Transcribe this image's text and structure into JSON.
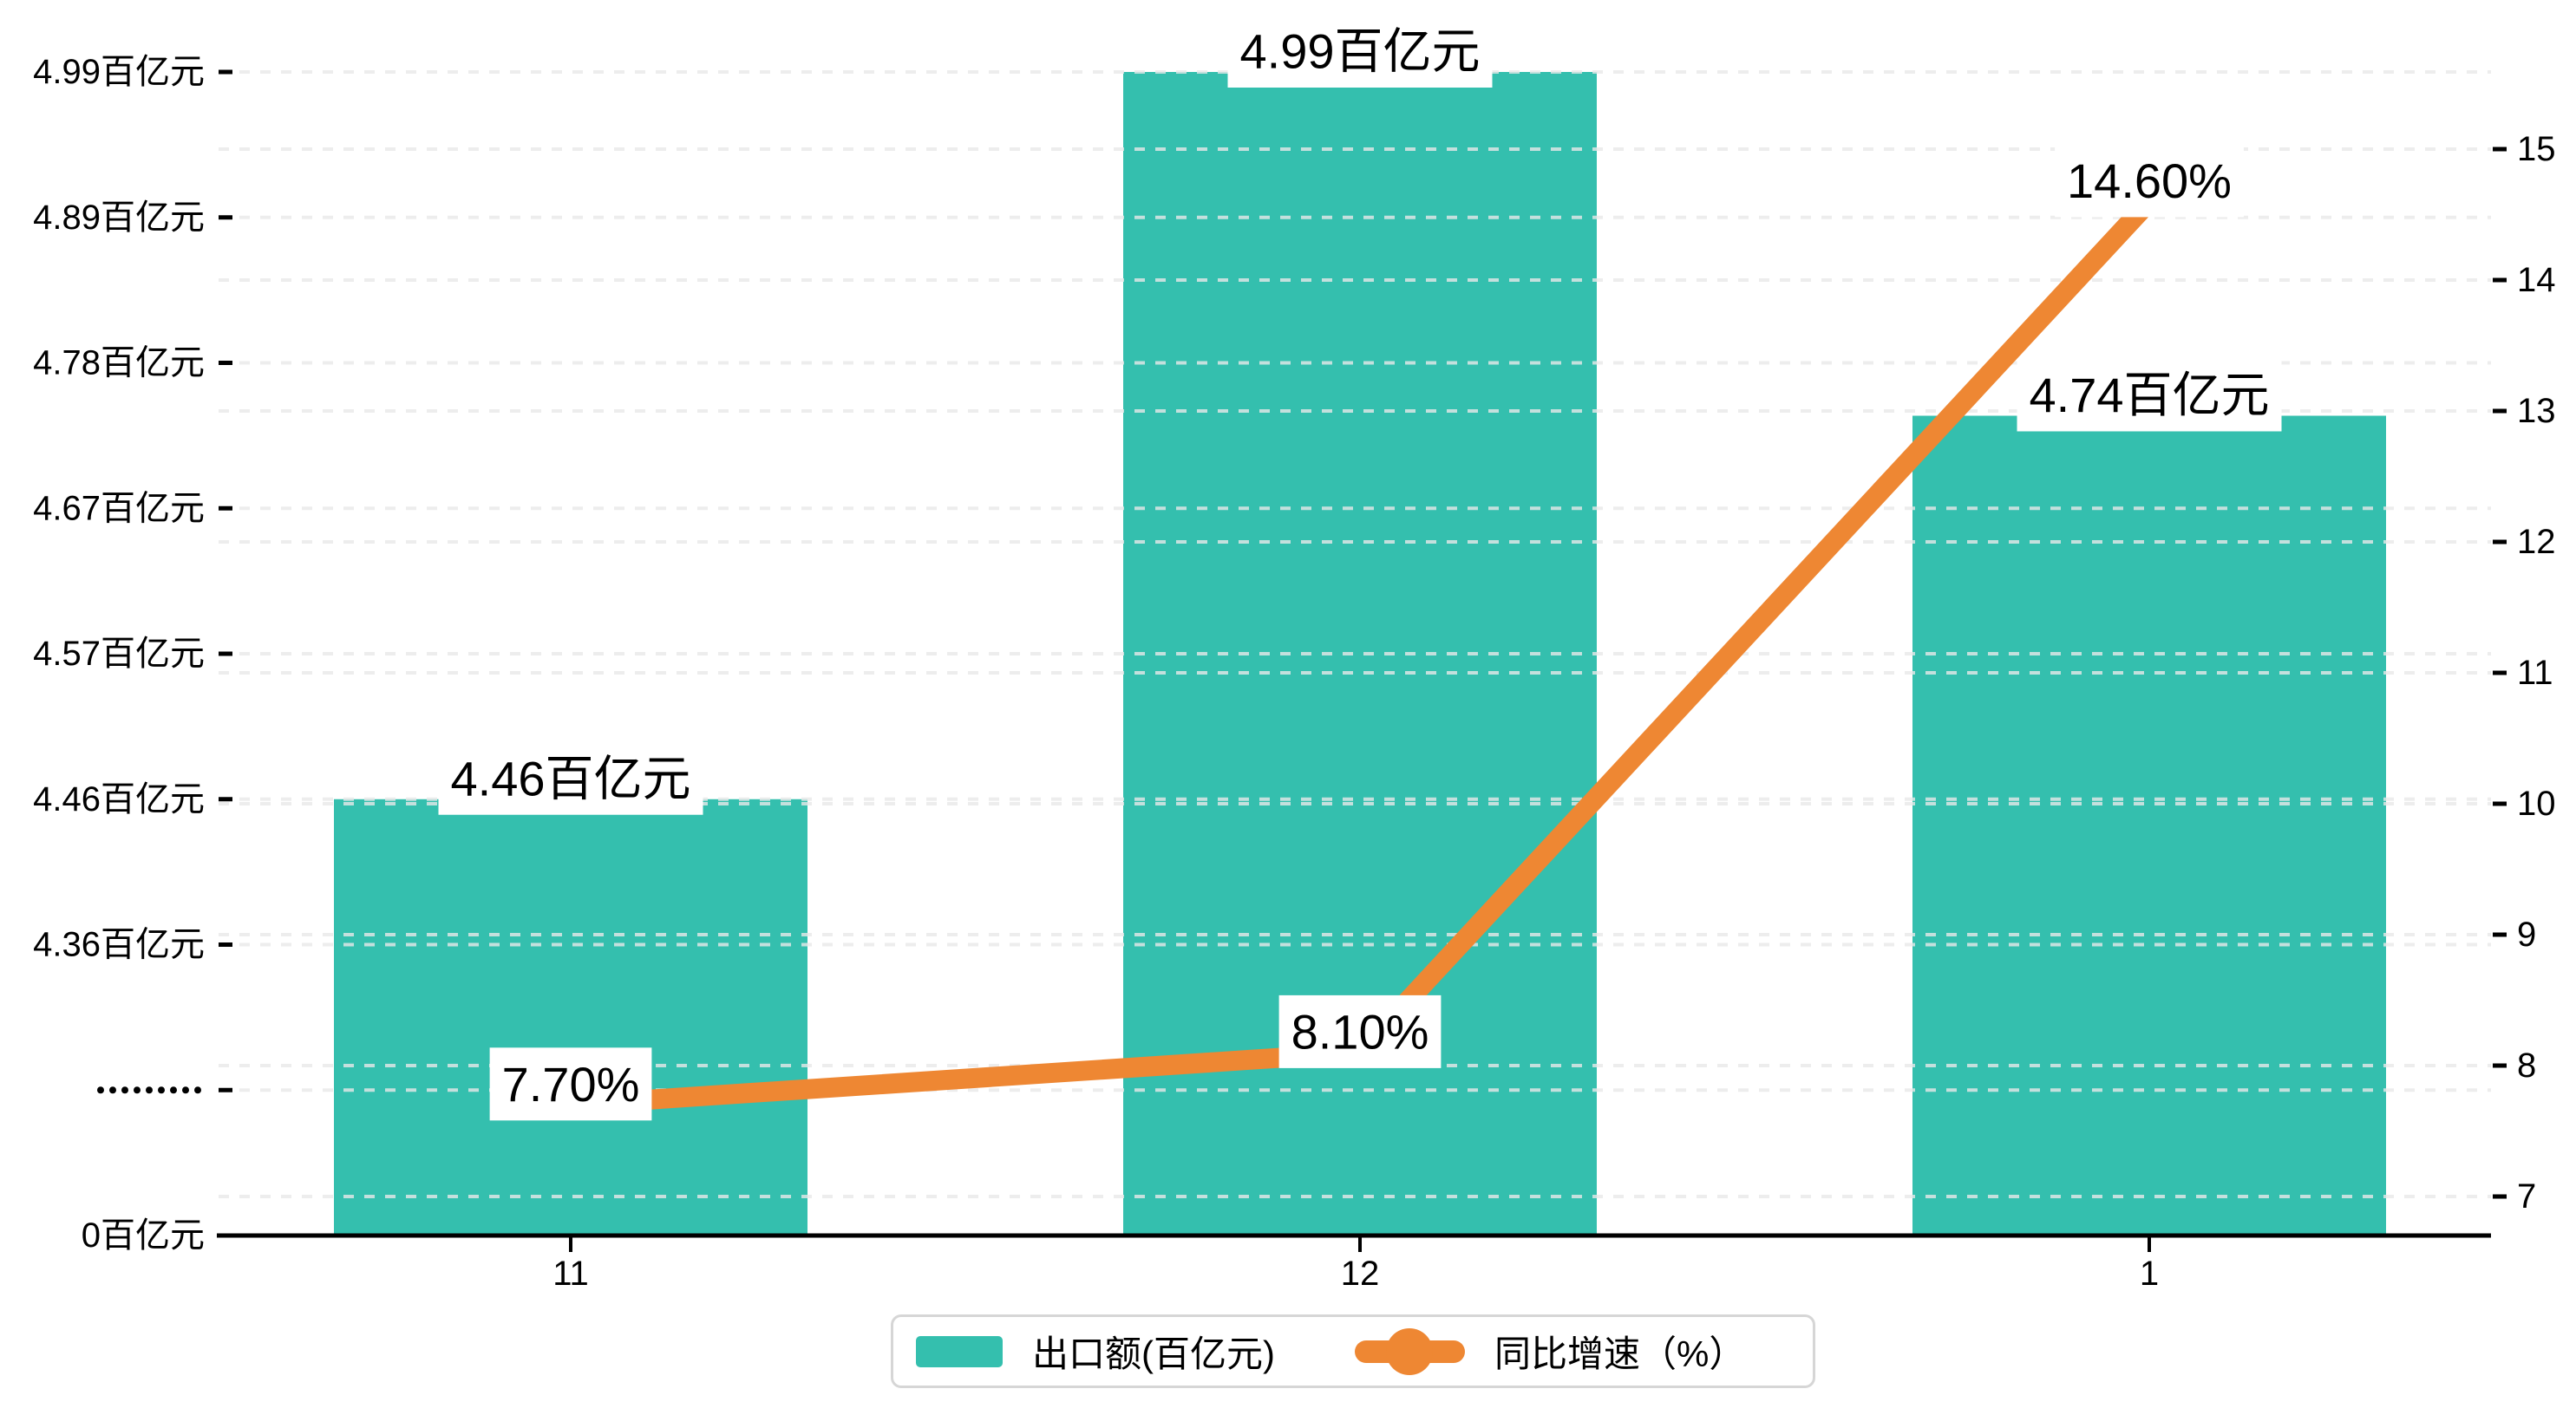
{
  "chart_data": {
    "type": "bar-line-combo",
    "title": "",
    "categories": [
      "11",
      "12",
      "1"
    ],
    "series": [
      {
        "name": "出口额(百亿元)",
        "type": "bar",
        "axis": "left",
        "values": [
          4.46,
          4.99,
          4.74
        ],
        "data_labels": [
          "4.46百亿元",
          "4.99百亿元",
          "4.74百亿元"
        ],
        "color": "#34bfae"
      },
      {
        "name": "同比增速（%）",
        "type": "line",
        "axis": "right",
        "values": [
          7.7,
          8.1,
          14.6
        ],
        "data_labels": [
          "7.70%",
          "8.10%",
          "14.60%"
        ],
        "color": "#ee8733"
      }
    ],
    "x_axis": {
      "tick_labels": [
        "11",
        "12",
        "1"
      ]
    },
    "left_y_axis": {
      "tick_labels": [
        "4.99百亿元",
        "4.89百亿元",
        "4.78百亿元",
        "4.67百亿元",
        "4.57百亿元",
        "4.46百亿元",
        "4.36百亿元",
        ".........",
        "0百亿元"
      ],
      "broken_axis_marker": ".........",
      "unit": "百亿元"
    },
    "right_y_axis": {
      "tick_labels": [
        "15",
        "14",
        "13",
        "12",
        "11",
        "10",
        "9",
        "8",
        "7"
      ],
      "max": 15,
      "min": 7,
      "unit": "%"
    },
    "legend": {
      "position": "bottom-center",
      "items": [
        {
          "label": "出口额(百亿元)",
          "marker": "bar-swatch",
          "color": "#34bfae"
        },
        {
          "label": "同比增速（%）",
          "marker": "line-dot",
          "color": "#ee8733"
        }
      ]
    },
    "grid": {
      "horizontal_gridlines": true,
      "gridline_style": "dashed",
      "vertical_gridlines": false
    }
  },
  "colors": {
    "bar": "#34bfae",
    "line": "#ee8733",
    "text": "#000000",
    "gridline": "#e8e8e8",
    "axis_line": "#000000",
    "label_box_bg": "#ffffff",
    "legend_border": "#d6d6d6",
    "background": "#ffffff"
  }
}
